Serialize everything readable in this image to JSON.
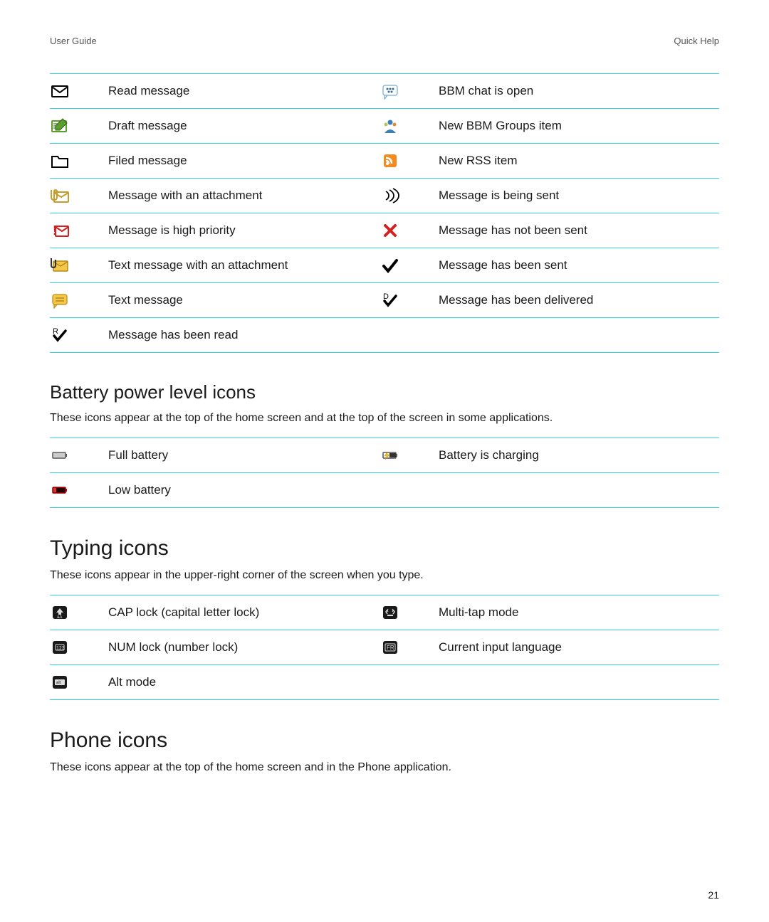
{
  "header": {
    "left": "User Guide",
    "right": "Quick Help"
  },
  "colors": {
    "divider": "#2fd6e2",
    "text": "#1a1a1a"
  },
  "message_icons": {
    "rows": [
      {
        "left_icon": "read-message",
        "left_label": "Read message",
        "right_icon": "bbm-chat-open",
        "right_label": "BBM chat is open"
      },
      {
        "left_icon": "draft-message",
        "left_label": "Draft message",
        "right_icon": "bbm-groups",
        "right_label": "New BBM Groups item"
      },
      {
        "left_icon": "filed-message",
        "left_label": "Filed message",
        "right_icon": "rss-item",
        "right_label": "New RSS item"
      },
      {
        "left_icon": "attachment-message",
        "left_label": "Message with an attachment",
        "right_icon": "sending",
        "right_label": "Message is being sent"
      },
      {
        "left_icon": "high-priority",
        "left_label": "Message is high priority",
        "right_icon": "not-sent",
        "right_label": "Message has not been sent"
      },
      {
        "left_icon": "text-attachment",
        "left_label": "Text message with an attachment",
        "right_icon": "sent-check",
        "right_label": "Message has been sent"
      },
      {
        "left_icon": "text-message",
        "left_label": "Text message",
        "right_icon": "delivered",
        "right_label": "Message has been delivered"
      },
      {
        "left_icon": "read-check",
        "left_label": "Message has been read",
        "right_icon": "",
        "right_label": ""
      }
    ]
  },
  "battery": {
    "heading": "Battery power level icons",
    "desc": "These icons appear at the top of the home screen and at the top of the screen in some applications.",
    "rows": [
      {
        "left_icon": "full-battery",
        "left_label": "Full battery",
        "right_icon": "charging-battery",
        "right_label": "Battery is charging"
      },
      {
        "left_icon": "low-battery",
        "left_label": "Low battery",
        "right_icon": "",
        "right_label": ""
      }
    ]
  },
  "typing": {
    "heading": "Typing icons",
    "desc": "These icons appear in the upper-right corner of the screen when you type.",
    "rows": [
      {
        "left_icon": "cap-lock",
        "left_label": "CAP lock (capital letter lock)",
        "right_icon": "multi-tap",
        "right_label": "Multi-tap mode"
      },
      {
        "left_icon": "num-lock",
        "left_label": "NUM lock (number lock)",
        "right_icon": "current-lang",
        "right_label": "Current input language"
      },
      {
        "left_icon": "alt-mode",
        "left_label": "Alt mode",
        "right_icon": "",
        "right_label": ""
      }
    ]
  },
  "phone": {
    "heading": "Phone icons",
    "desc": "These icons appear at the top of the home screen and in the Phone application."
  },
  "page_number": "21"
}
